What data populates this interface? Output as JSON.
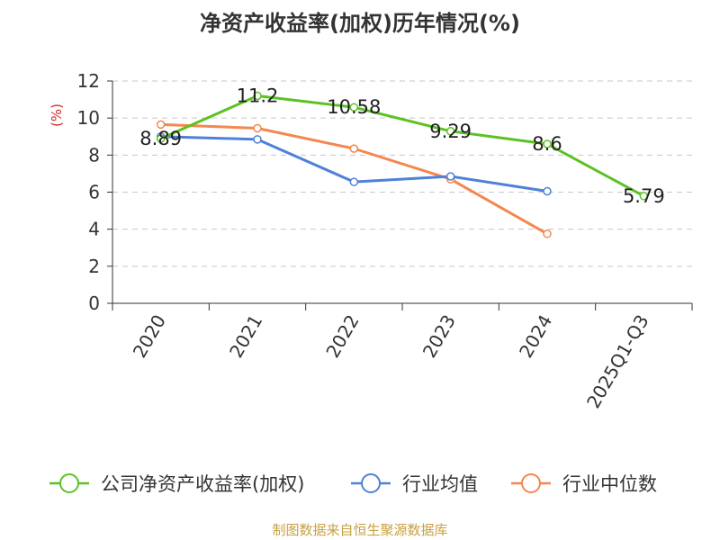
{
  "chart_data": {
    "type": "line",
    "title": "净资产收益率(加权)历年情况(%)",
    "ylabel": "(%)",
    "xlabel": "",
    "ylim": [
      0,
      12
    ],
    "yticks": [
      0,
      2,
      4,
      6,
      8,
      10,
      12
    ],
    "grid": true,
    "legend_position": "bottom",
    "categories": [
      "2020",
      "2021",
      "2022",
      "2023",
      "2024",
      "2025Q1-Q3"
    ],
    "series": [
      {
        "name": "公司净资产收益率(加权)",
        "color": "#5cc223",
        "values": [
          8.89,
          11.2,
          10.58,
          9.29,
          8.6,
          5.79
        ],
        "labels": [
          "8.89",
          "11.2",
          "10.58",
          "9.29",
          "8.6",
          "5.79"
        ]
      },
      {
        "name": "行业均值",
        "color": "#4f81d8",
        "values": [
          9.0,
          8.85,
          6.55,
          6.85,
          6.05,
          null
        ]
      },
      {
        "name": "行业中位数",
        "color": "#f4874f",
        "values": [
          9.65,
          9.45,
          8.35,
          6.7,
          3.75,
          null
        ]
      }
    ]
  },
  "footer": "制图数据来自恒生聚源数据库"
}
